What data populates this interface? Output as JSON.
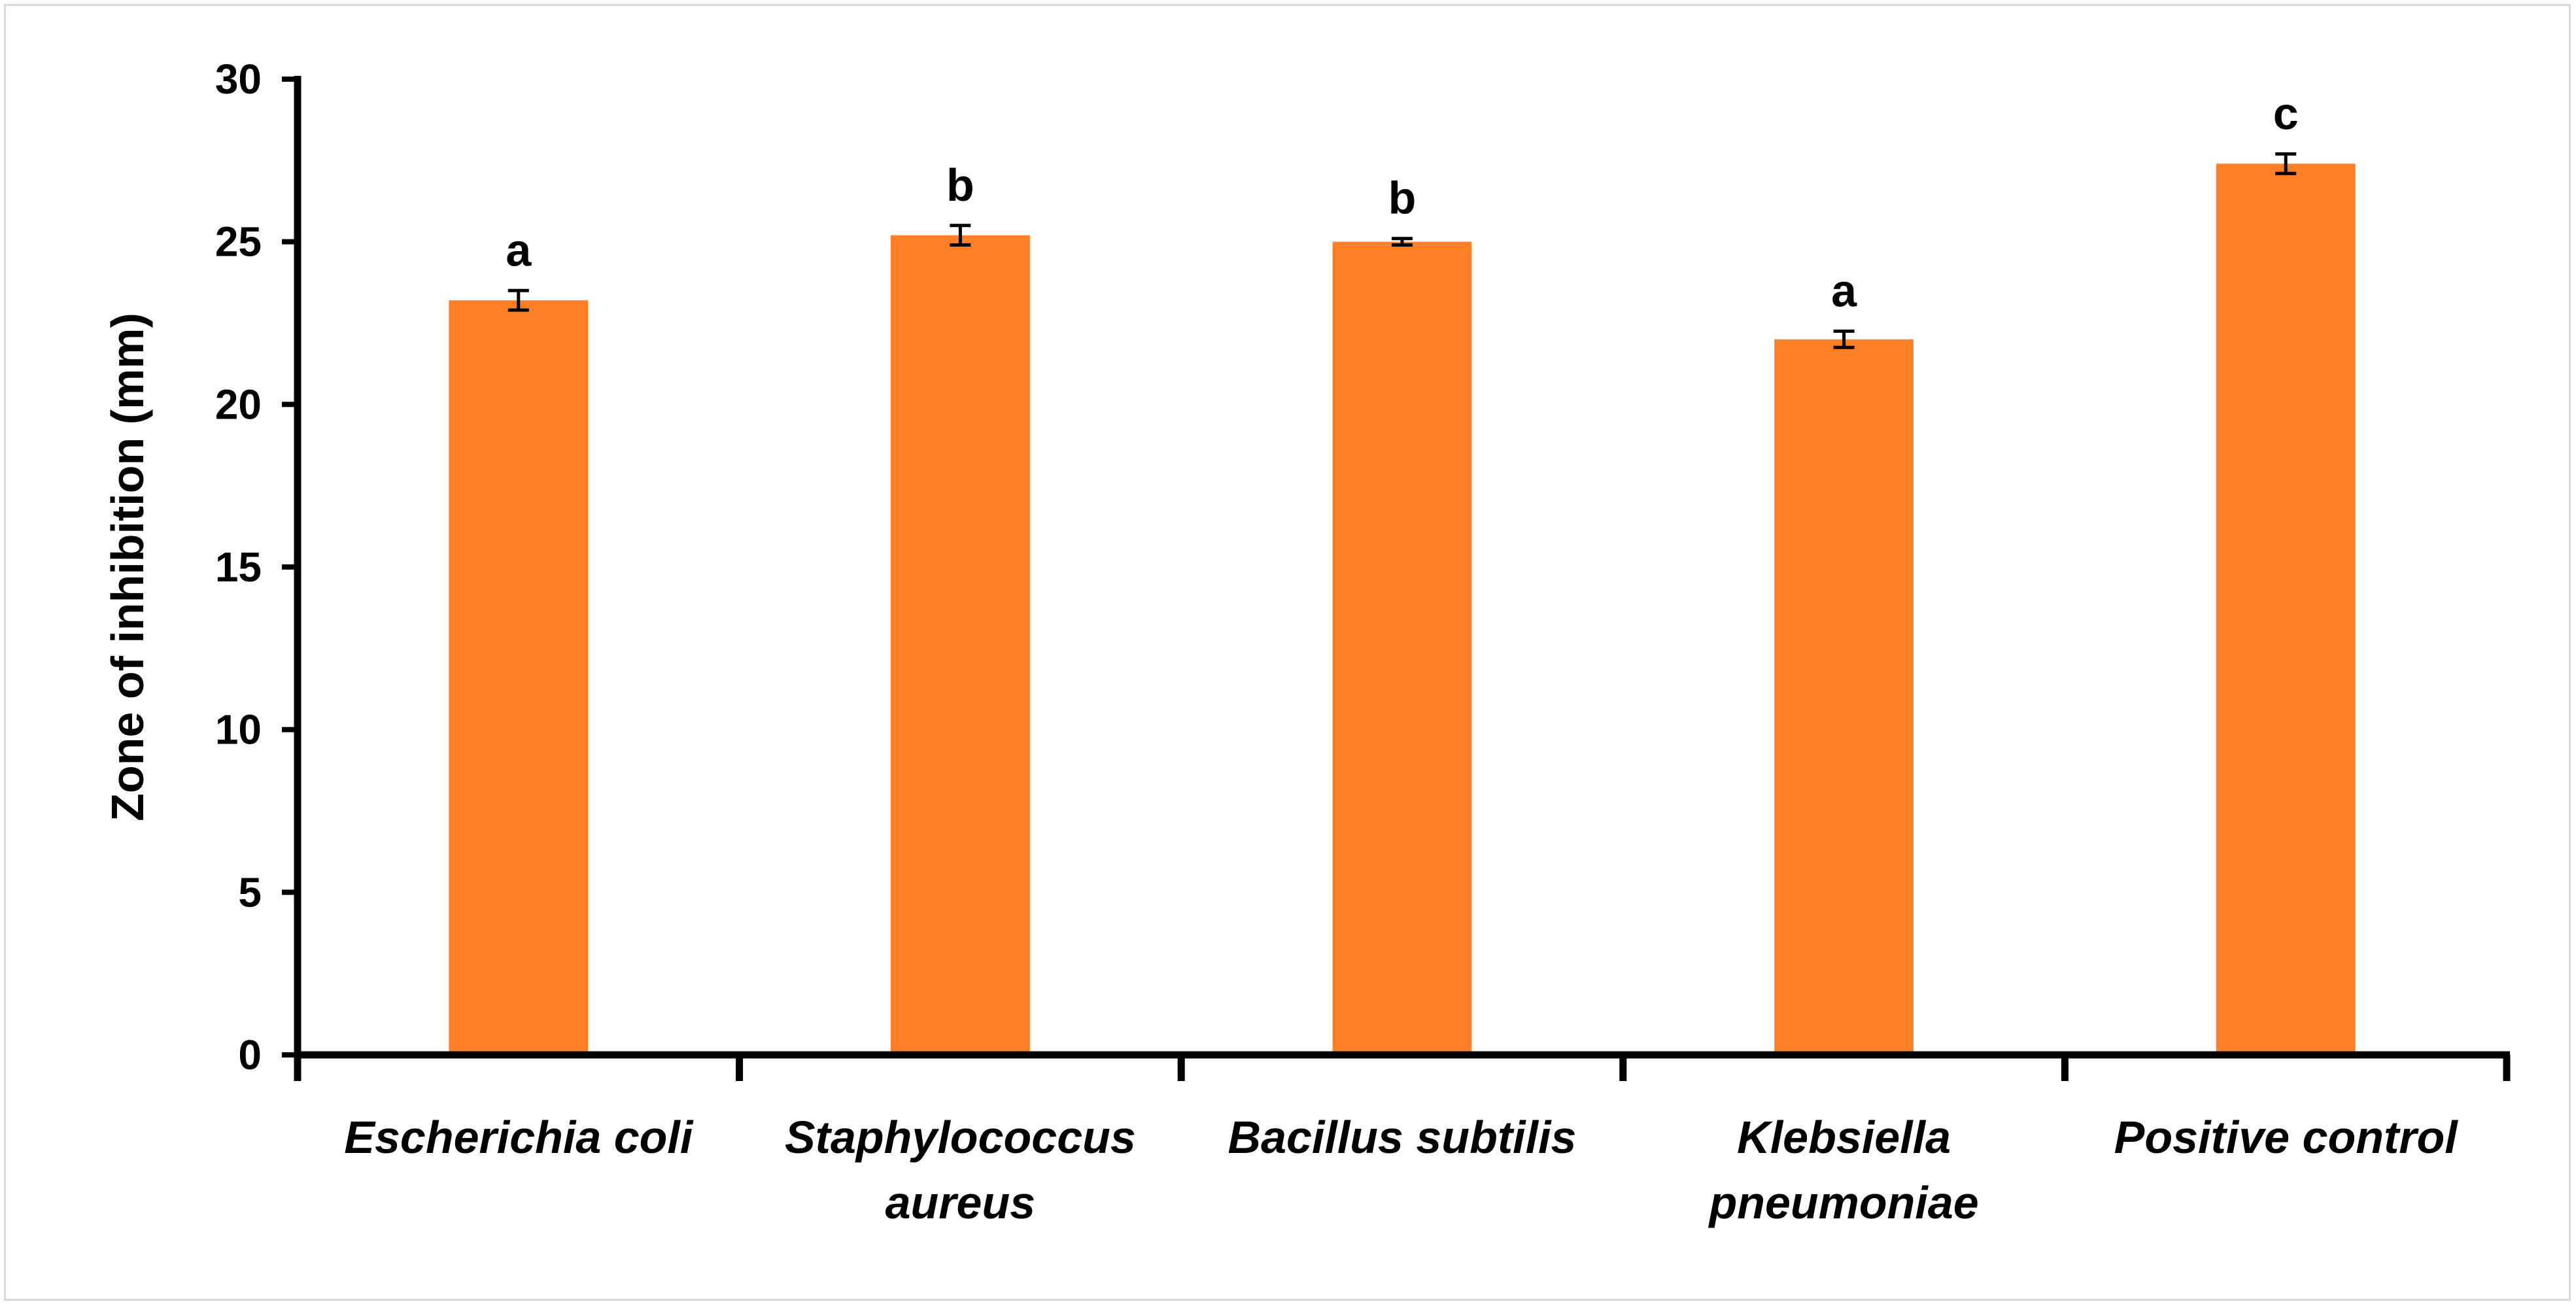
{
  "chart_data": {
    "type": "bar",
    "title": "",
    "xlabel": "",
    "ylabel": "Zone of inhibition (mm)",
    "ylim": [
      0,
      30
    ],
    "yticks": [
      0,
      5,
      10,
      15,
      20,
      25,
      30
    ],
    "grid": false,
    "legend": "none",
    "bar_color": "#FF7F27",
    "categories": [
      [
        "Escherichia coli"
      ],
      [
        "Staphylococcus",
        "aureus"
      ],
      [
        "Bacillus subtilis"
      ],
      [
        "Klebsiella",
        "pneumoniae"
      ],
      [
        "Positive control"
      ]
    ],
    "values": [
      23.2,
      25.2,
      25.0,
      22.0,
      27.4
    ],
    "errors": [
      0.3,
      0.3,
      0.1,
      0.25,
      0.3
    ],
    "annotations": [
      "a",
      "b",
      "b",
      "a",
      "c"
    ]
  }
}
